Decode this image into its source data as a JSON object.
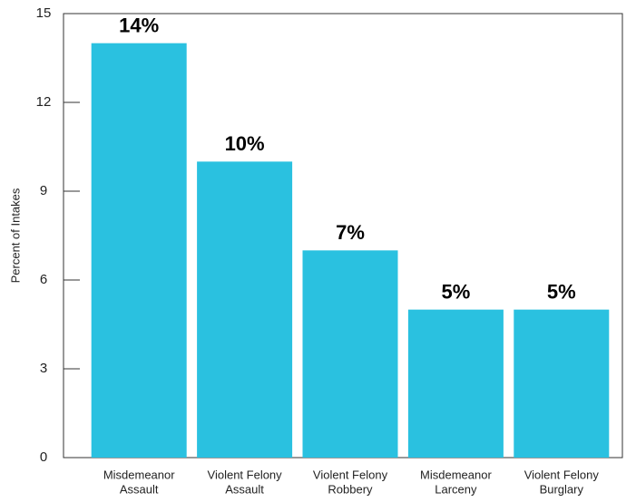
{
  "chart_data": {
    "type": "bar",
    "y_axis_label": "Percent of Intakes",
    "categories": [
      [
        "Misdemeanor",
        "Assault"
      ],
      [
        "Violent Felony",
        "Assault"
      ],
      [
        "Violent Felony",
        "Robbery"
      ],
      [
        "Misdemeanor",
        "Larceny"
      ],
      [
        "Violent Felony",
        "Burglary"
      ]
    ],
    "values": [
      14,
      10,
      7,
      5,
      5
    ],
    "value_labels": [
      "14%",
      "10%",
      "7%",
      "5%",
      "5%"
    ],
    "color": "#2ac1e0",
    "ylim": [
      0,
      15
    ],
    "yticks": [
      0,
      3,
      6,
      9,
      12,
      15
    ],
    "grid": false
  }
}
